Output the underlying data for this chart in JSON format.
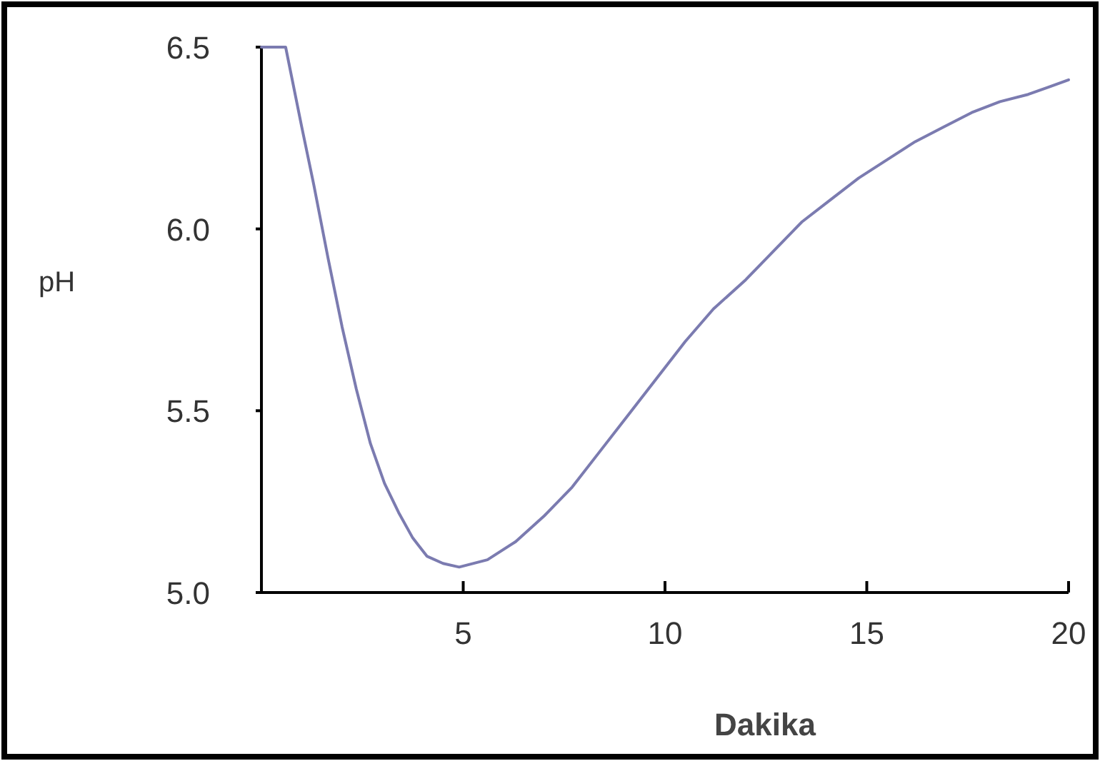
{
  "chart_data": {
    "type": "line",
    "xlabel": "Dakika",
    "ylabel": "pH",
    "xlim": [
      0,
      20
    ],
    "ylim": [
      5.0,
      6.5
    ],
    "xticks": [
      5,
      10,
      15,
      20
    ],
    "yticks": [
      {
        "value": 5.0,
        "label": "5.0"
      },
      {
        "value": 5.5,
        "label": "5.5"
      },
      {
        "value": 6.0,
        "label": "6.0"
      },
      {
        "value": 6.5,
        "label": "6.5"
      }
    ],
    "grid": false,
    "marker": "none",
    "line_style": "solid",
    "series": [
      {
        "color": "#7b7bb0",
        "x": [
          0,
          0.6,
          1.0,
          1.3,
          1.65,
          2.0,
          2.35,
          2.7,
          3.05,
          3.4,
          3.75,
          4.1,
          4.5,
          4.9,
          5.6,
          6.3,
          7.0,
          7.7,
          8.4,
          9.1,
          9.8,
          10.5,
          11.2,
          12.0,
          12.7,
          13.4,
          14.1,
          14.8,
          15.5,
          16.2,
          16.9,
          17.6,
          18.3,
          19.0,
          19.5,
          20
        ],
        "values": [
          6.5,
          6.5,
          6.28,
          6.12,
          5.92,
          5.73,
          5.56,
          5.41,
          5.3,
          5.22,
          5.15,
          5.1,
          5.08,
          5.07,
          5.09,
          5.14,
          5.21,
          5.29,
          5.39,
          5.49,
          5.59,
          5.69,
          5.78,
          5.86,
          5.94,
          6.02,
          6.08,
          6.14,
          6.19,
          6.24,
          6.28,
          6.32,
          6.35,
          6.37,
          6.39,
          6.41
        ]
      }
    ]
  }
}
